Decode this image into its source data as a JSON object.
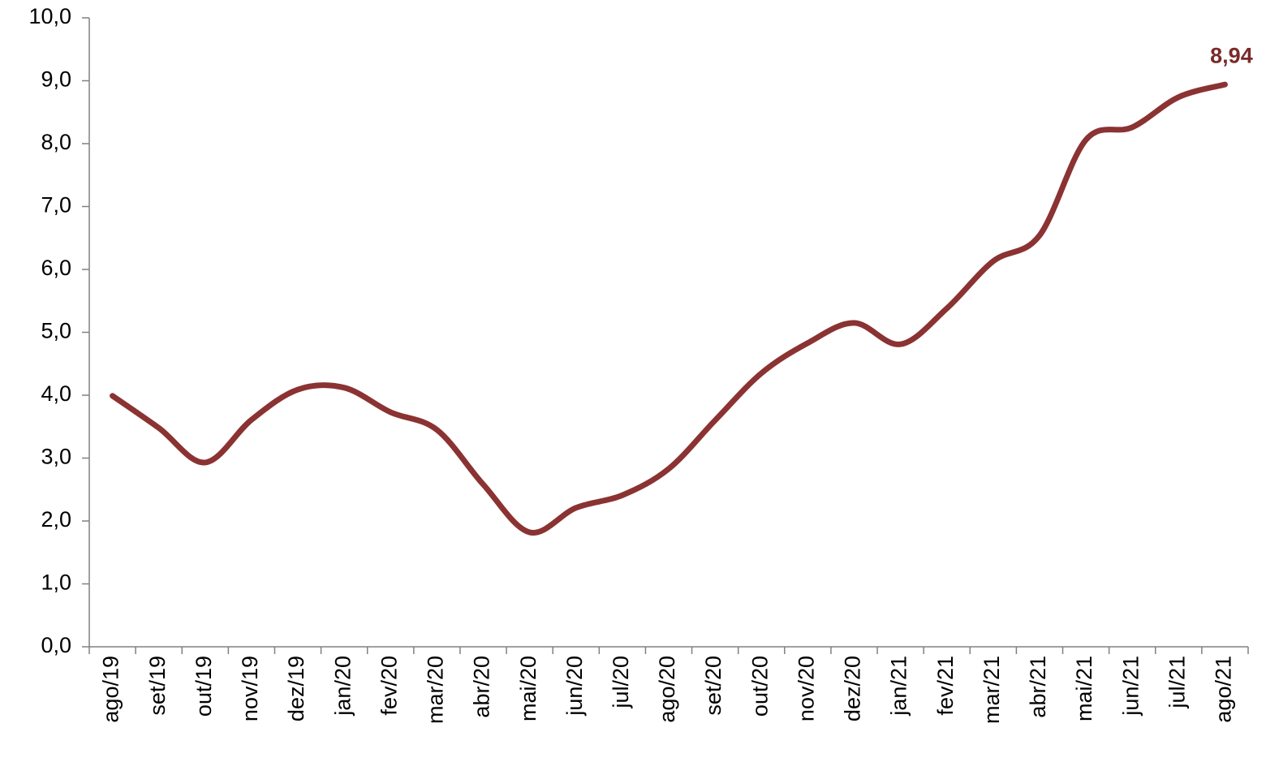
{
  "chart_data": {
    "type": "line",
    "categories": [
      "ago/19",
      "set/19",
      "out/19",
      "nov/19",
      "dez/19",
      "jan/20",
      "fev/20",
      "mar/20",
      "abr/20",
      "mai/20",
      "jun/20",
      "jul/20",
      "ago/20",
      "set/20",
      "out/20",
      "nov/20",
      "dez/20",
      "jan/21",
      "fev/21",
      "mar/21",
      "abr/21",
      "mai/21",
      "jun/21",
      "jul/21",
      "ago/21"
    ],
    "series": [
      {
        "color": "#8b3232",
        "values": [
          3.99,
          3.48,
          2.93,
          3.61,
          4.09,
          4.12,
          3.73,
          3.45,
          2.58,
          1.82,
          2.21,
          2.41,
          2.83,
          3.6,
          4.35,
          4.83,
          5.15,
          4.81,
          5.38,
          6.13,
          6.54,
          8.06,
          8.26,
          8.74,
          8.94
        ],
        "value_labels": [
          null,
          null,
          null,
          null,
          null,
          null,
          null,
          null,
          null,
          null,
          null,
          null,
          null,
          null,
          null,
          null,
          null,
          null,
          null,
          null,
          null,
          null,
          null,
          null,
          "8,94"
        ]
      }
    ],
    "ylim": [
      0,
      10
    ],
    "yticks": [
      {
        "value": 0,
        "label": "0,0"
      },
      {
        "value": 1,
        "label": "1,0"
      },
      {
        "value": 2,
        "label": "2,0"
      },
      {
        "value": 3,
        "label": "3,0"
      },
      {
        "value": 4,
        "label": "4,0"
      },
      {
        "value": 5,
        "label": "5,0"
      },
      {
        "value": 6,
        "label": "6,0"
      },
      {
        "value": 7,
        "label": "7,0"
      },
      {
        "value": 8,
        "label": "8,0"
      },
      {
        "value": 9,
        "label": "9,0"
      },
      {
        "value": 10,
        "label": "10,0"
      }
    ],
    "grid": false
  }
}
